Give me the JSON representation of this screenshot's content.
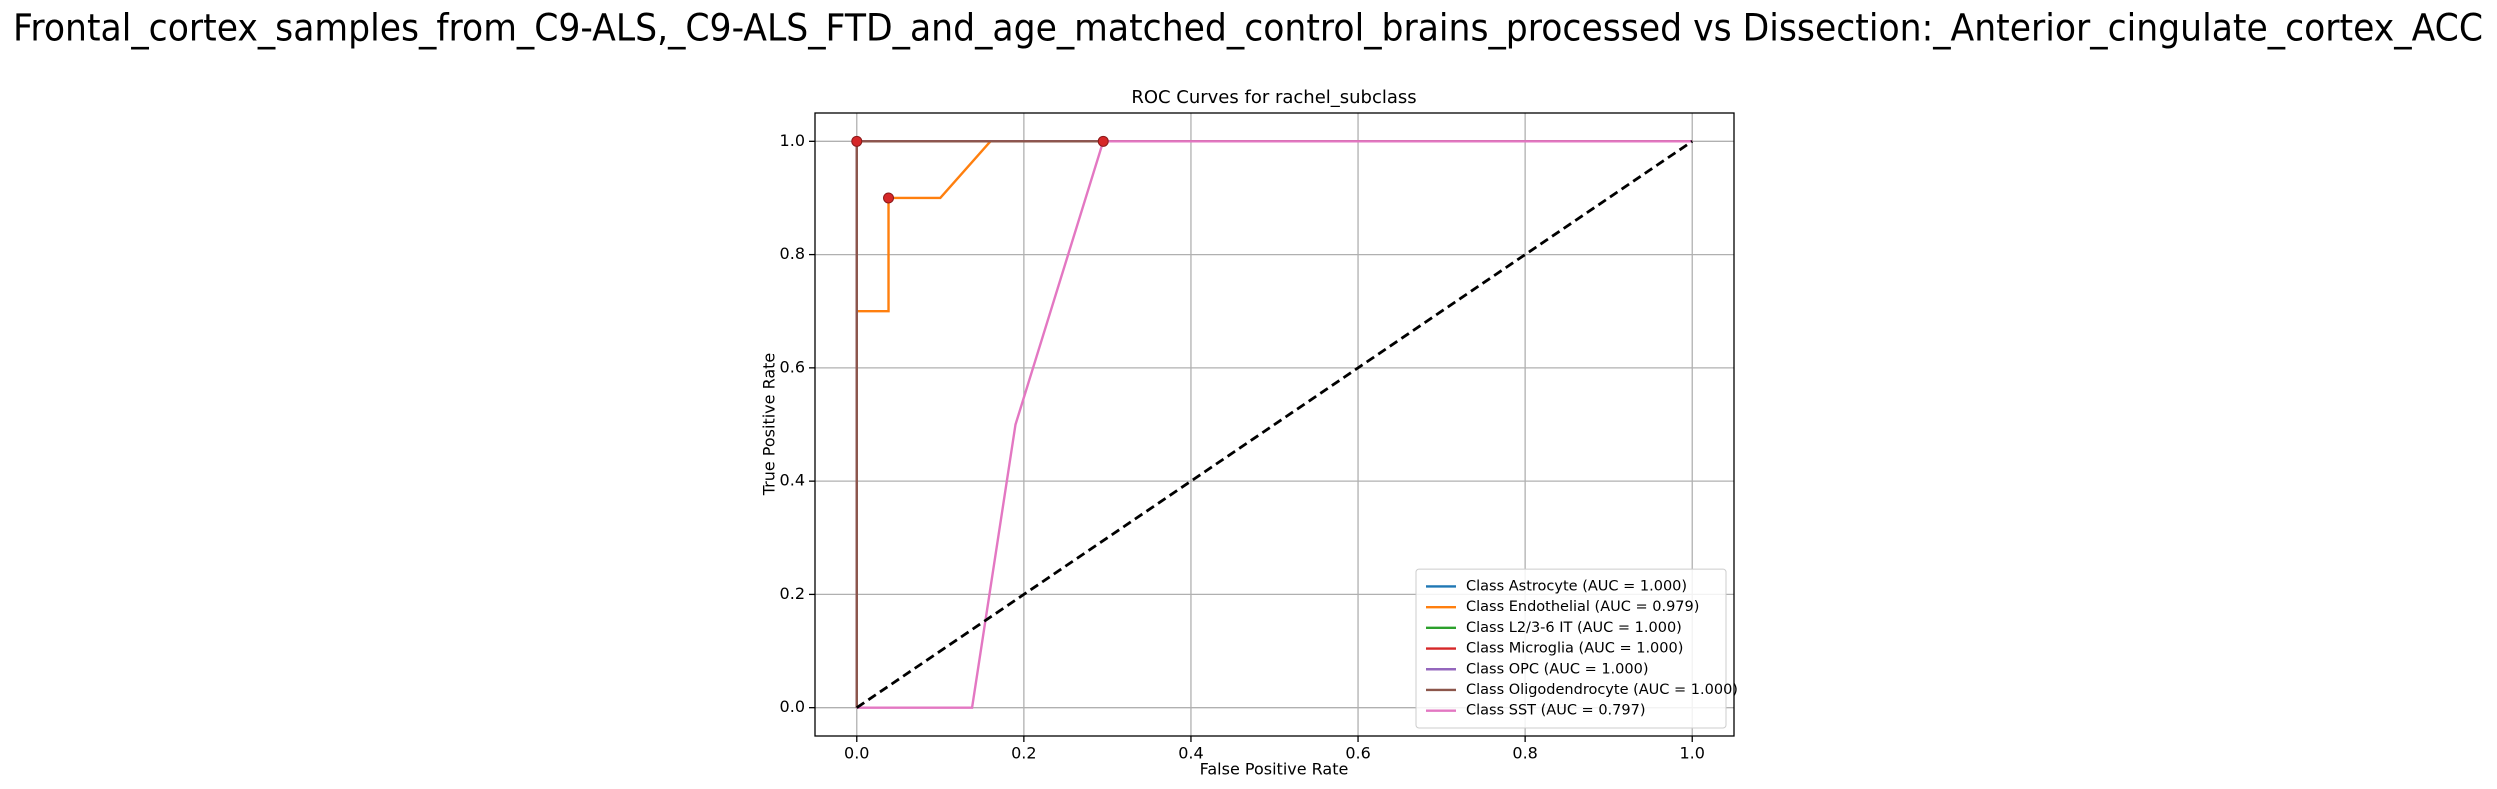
{
  "chart_data": {
    "type": "line",
    "suptitle": "Frontal_cortex_samples_from_C9-ALS,_C9-ALS_FTD_and_age_matched_control_brains_processed vs Dissection:_Anterior_cingulate_cortex_ACC",
    "title": "ROC Curves for rachel_subclass",
    "x_label": "False Positive Rate",
    "y_label": "True Positive Rate",
    "xlim": [
      -0.05,
      1.05
    ],
    "ylim": [
      -0.05,
      1.05
    ],
    "xticks": [
      {
        "value": 0,
        "label": "0.0"
      },
      0.2,
      0.4,
      0.6,
      0.8,
      {
        "value": 1,
        "label": "1.0"
      }
    ],
    "yticks": [
      {
        "value": 0,
        "label": "0.0"
      },
      0.2,
      0.4,
      0.6,
      0.8,
      {
        "value": 1,
        "label": "1.0"
      }
    ],
    "grid": true,
    "legend": "lower right",
    "series": [
      {
        "name": "Class Astrocyte (AUC = 1.000)",
        "color": "#1f77b4",
        "x": [
          0,
          0,
          1
        ],
        "y": [
          0,
          1,
          1
        ]
      },
      {
        "name": "Class Endothelial (AUC = 0.979)",
        "color": "#ff7f0e",
        "x": [
          0,
          0,
          0.038,
          0.038,
          0.1,
          0.16,
          1
        ],
        "y": [
          0,
          0.7,
          0.7,
          0.9,
          0.9,
          1,
          1
        ]
      },
      {
        "name": "Class L2/3-6 IT (AUC = 1.000)",
        "color": "#2ca02c",
        "x": [
          0,
          0,
          1
        ],
        "y": [
          0,
          1,
          1
        ]
      },
      {
        "name": "Class Microglia (AUC = 1.000)",
        "color": "#d62728",
        "x": [
          0,
          0,
          1
        ],
        "y": [
          0,
          1,
          1
        ]
      },
      {
        "name": "Class OPC (AUC = 1.000)",
        "color": "#9467bd",
        "x": [
          0,
          0,
          1
        ],
        "y": [
          0,
          1,
          1
        ]
      },
      {
        "name": "Class Oligodendrocyte (AUC = 1.000)",
        "color": "#8c564b",
        "x": [
          0,
          0,
          1
        ],
        "y": [
          0,
          1,
          1
        ]
      },
      {
        "name": "Class SST (AUC = 0.797)",
        "color": "#e377c2",
        "x": [
          0,
          0.138,
          0.19,
          0.295,
          1
        ],
        "y": [
          0,
          0,
          0.5,
          1,
          1
        ]
      }
    ],
    "diagonal": {
      "color": "#000000",
      "x": [
        0,
        1
      ],
      "y": [
        0,
        1
      ]
    },
    "markers": {
      "color": "#d62728",
      "x": [
        0,
        0.038,
        0.295
      ],
      "y": [
        1,
        0.9,
        1
      ]
    }
  }
}
